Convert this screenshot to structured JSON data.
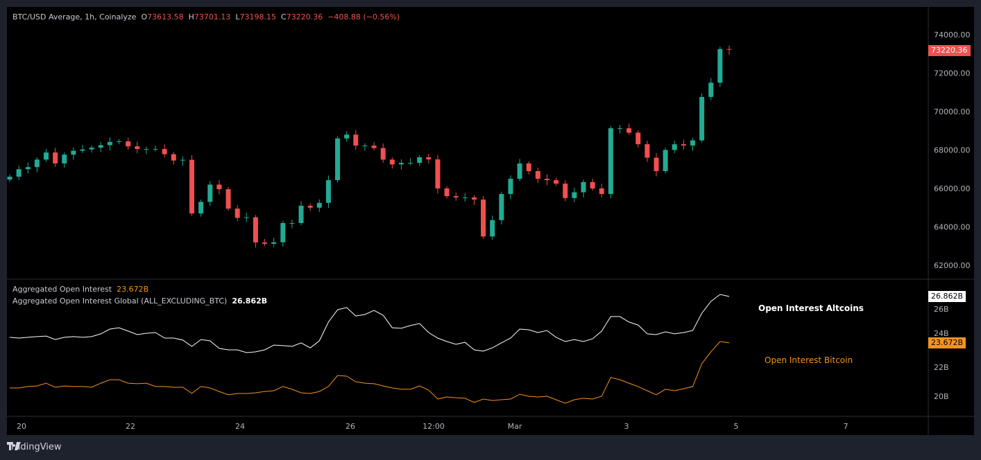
{
  "header": {
    "symbol": "BTC/USD Average, 1h, Coinalyze",
    "open_label": "O",
    "open": "73613.58",
    "high_label": "H",
    "high": "73701.13",
    "low_label": "L",
    "low": "73198.15",
    "close_label": "C",
    "close": "73220.36",
    "change": "−408.88 (−0.56%)"
  },
  "colors": {
    "up": "#22ab94",
    "down": "#f0504f",
    "altcoins": "#ffffff",
    "bitcoin": "#f7931a",
    "background": "#000000",
    "frame": "#1e222d"
  },
  "price_axis": {
    "ticks": [
      "74000.00",
      "72000.00",
      "70000.00",
      "68000.00",
      "66000.00",
      "64000.00",
      "62000.00"
    ],
    "last_price_label": "73220.36"
  },
  "oi_legend": {
    "btc_name": "Aggregated Open Interest",
    "btc_value": "23.672B",
    "alt_name": "Aggregated Open Interest Global (ALL_EXCLUDING_BTC)",
    "alt_value": "26.862B"
  },
  "oi_axis": {
    "ticks": [
      "26B",
      "24B",
      "22B",
      "20B"
    ],
    "alt_last_label": "26.862B",
    "btc_last_label": "23.672B"
  },
  "annotations": {
    "altcoins": "Open Interest Altcoins",
    "bitcoin": "Open Interest Bitcoin"
  },
  "time_axis": {
    "ticks": [
      "20",
      "22",
      "24",
      "26",
      "12:00",
      "Mar",
      "3",
      "5",
      "7"
    ]
  },
  "brand": "TradingView",
  "chart_data": [
    {
      "type": "candlestick",
      "title": "BTC/USD Average, 1h, Coinalyze",
      "ylim": [
        61500,
        75000
      ],
      "close": [
        66610,
        67000,
        67110,
        67500,
        67870,
        67300,
        67760,
        67960,
        68030,
        68120,
        68250,
        68420,
        68450,
        68190,
        68050,
        68050,
        68050,
        67780,
        67450,
        67490,
        64700,
        65300,
        66200,
        65960,
        64950,
        64470,
        64500,
        63190,
        63120,
        63200,
        64200,
        64200,
        65100,
        65000,
        65250,
        66430,
        68600,
        68800,
        68230,
        68230,
        68100,
        67500,
        67250,
        67330,
        67330,
        67620,
        67510,
        66000,
        65600,
        65530,
        65530,
        65420,
        63500,
        64350,
        65710,
        66500,
        67300,
        66900,
        66500,
        66430,
        66250,
        65500,
        65800,
        66330,
        66000,
        65710,
        69130,
        69130,
        68900,
        68300,
        67600,
        66900,
        68000,
        68300,
        68230,
        68500,
        70760,
        71500,
        73250,
        73220.36
      ]
    },
    {
      "type": "line",
      "ylim": [
        19,
        27.5
      ],
      "series": [
        {
          "name": "Aggregated Open Interest Global (ALL_EXCLUDING_BTC)",
          "color": "#ffffff",
          "values": [
            24.05,
            24.0,
            24.05,
            24.1,
            24.14,
            23.9,
            24.05,
            24.1,
            24.05,
            24.1,
            24.29,
            24.62,
            24.71,
            24.48,
            24.24,
            24.33,
            24.38,
            24.0,
            24.0,
            23.86,
            23.43,
            23.9,
            23.81,
            23.29,
            23.19,
            23.19,
            23.0,
            23.05,
            23.19,
            23.52,
            23.48,
            23.43,
            23.67,
            23.33,
            23.81,
            25.1,
            25.95,
            26.1,
            25.52,
            25.62,
            25.9,
            25.57,
            24.71,
            24.67,
            24.86,
            25.0,
            24.38,
            24.0,
            23.76,
            23.57,
            23.71,
            23.19,
            23.1,
            23.33,
            23.67,
            24.0,
            24.62,
            24.57,
            24.38,
            24.52,
            24.05,
            23.76,
            23.9,
            23.76,
            23.95,
            24.48,
            25.48,
            25.48,
            25.1,
            24.9,
            24.29,
            24.24,
            24.43,
            24.29,
            24.38,
            24.52,
            25.71,
            26.52,
            27.0,
            26.862
          ]
        },
        {
          "name": "Aggregated Open Interest",
          "color": "#f7931a",
          "values": [
            20.57,
            20.57,
            20.67,
            20.71,
            20.9,
            20.62,
            20.71,
            20.67,
            20.67,
            20.62,
            20.9,
            21.14,
            21.14,
            20.9,
            20.86,
            20.9,
            20.67,
            20.67,
            20.62,
            20.62,
            20.2,
            20.67,
            20.57,
            20.33,
            20.1,
            20.19,
            20.19,
            20.24,
            20.33,
            20.38,
            20.67,
            20.48,
            20.24,
            20.19,
            20.33,
            20.67,
            21.43,
            21.38,
            21.0,
            20.9,
            20.86,
            20.71,
            20.57,
            20.48,
            20.48,
            20.71,
            20.43,
            19.81,
            19.95,
            19.9,
            19.86,
            19.57,
            19.81,
            19.71,
            19.76,
            19.81,
            20.14,
            20.0,
            19.95,
            20.0,
            19.76,
            19.52,
            19.76,
            19.86,
            19.81,
            20.0,
            21.29,
            21.14,
            20.9,
            20.67,
            20.38,
            20.1,
            20.48,
            20.38,
            20.52,
            20.67,
            22.24,
            23.05,
            23.76,
            23.672
          ]
        }
      ]
    }
  ]
}
